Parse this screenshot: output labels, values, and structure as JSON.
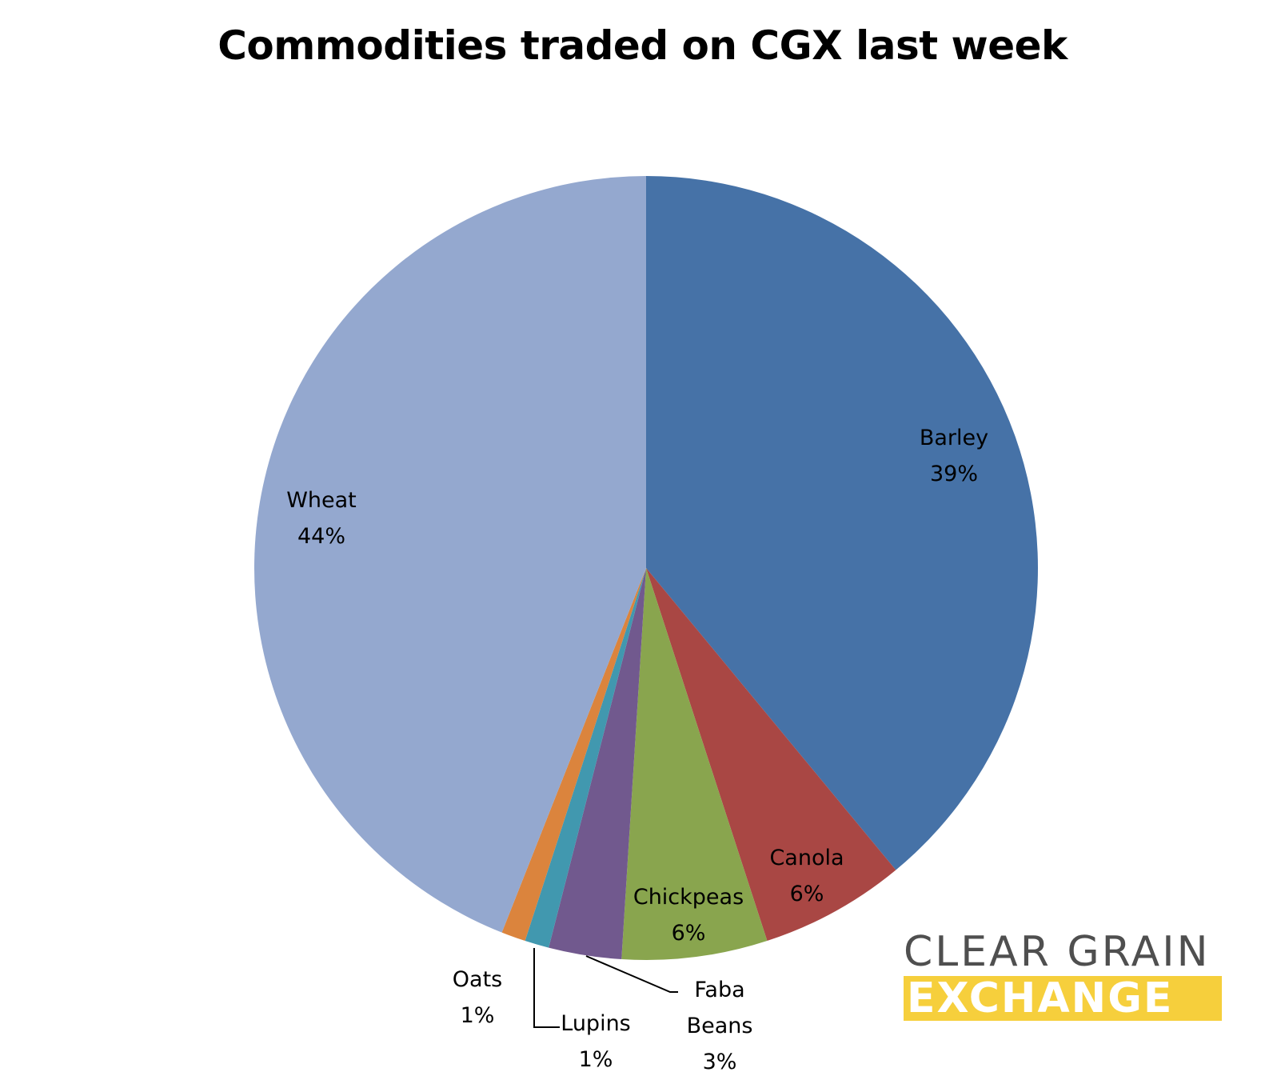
{
  "chart_data": {
    "type": "pie",
    "title": "Commodities traded on CGX last week",
    "slices": [
      {
        "label": "Barley",
        "value": 39,
        "display": "39%",
        "color": "#4672A7"
      },
      {
        "label": "Canola",
        "value": 6,
        "display": "6%",
        "color": "#A94744"
      },
      {
        "label": "Chickpeas",
        "value": 6,
        "display": "6%",
        "color": "#89A54E"
      },
      {
        "label": "Faba Beans",
        "value": 3,
        "display": "3%",
        "color": "#71598E"
      },
      {
        "label": "Lupins",
        "value": 1,
        "display": "1%",
        "color": "#4198AF"
      },
      {
        "label": "Oats",
        "value": 1,
        "display": "1%",
        "color": "#DB843D"
      },
      {
        "label": "Wheat",
        "value": 44,
        "display": "44%",
        "color": "#94A8CF"
      }
    ],
    "start_angle_deg": 0,
    "direction": "clockwise"
  },
  "logo": {
    "line1": "CLEAR GRAIN",
    "line2": "EXCHANGE",
    "text_color": "#4f4f4f",
    "band_color": "#f6cf3c"
  }
}
